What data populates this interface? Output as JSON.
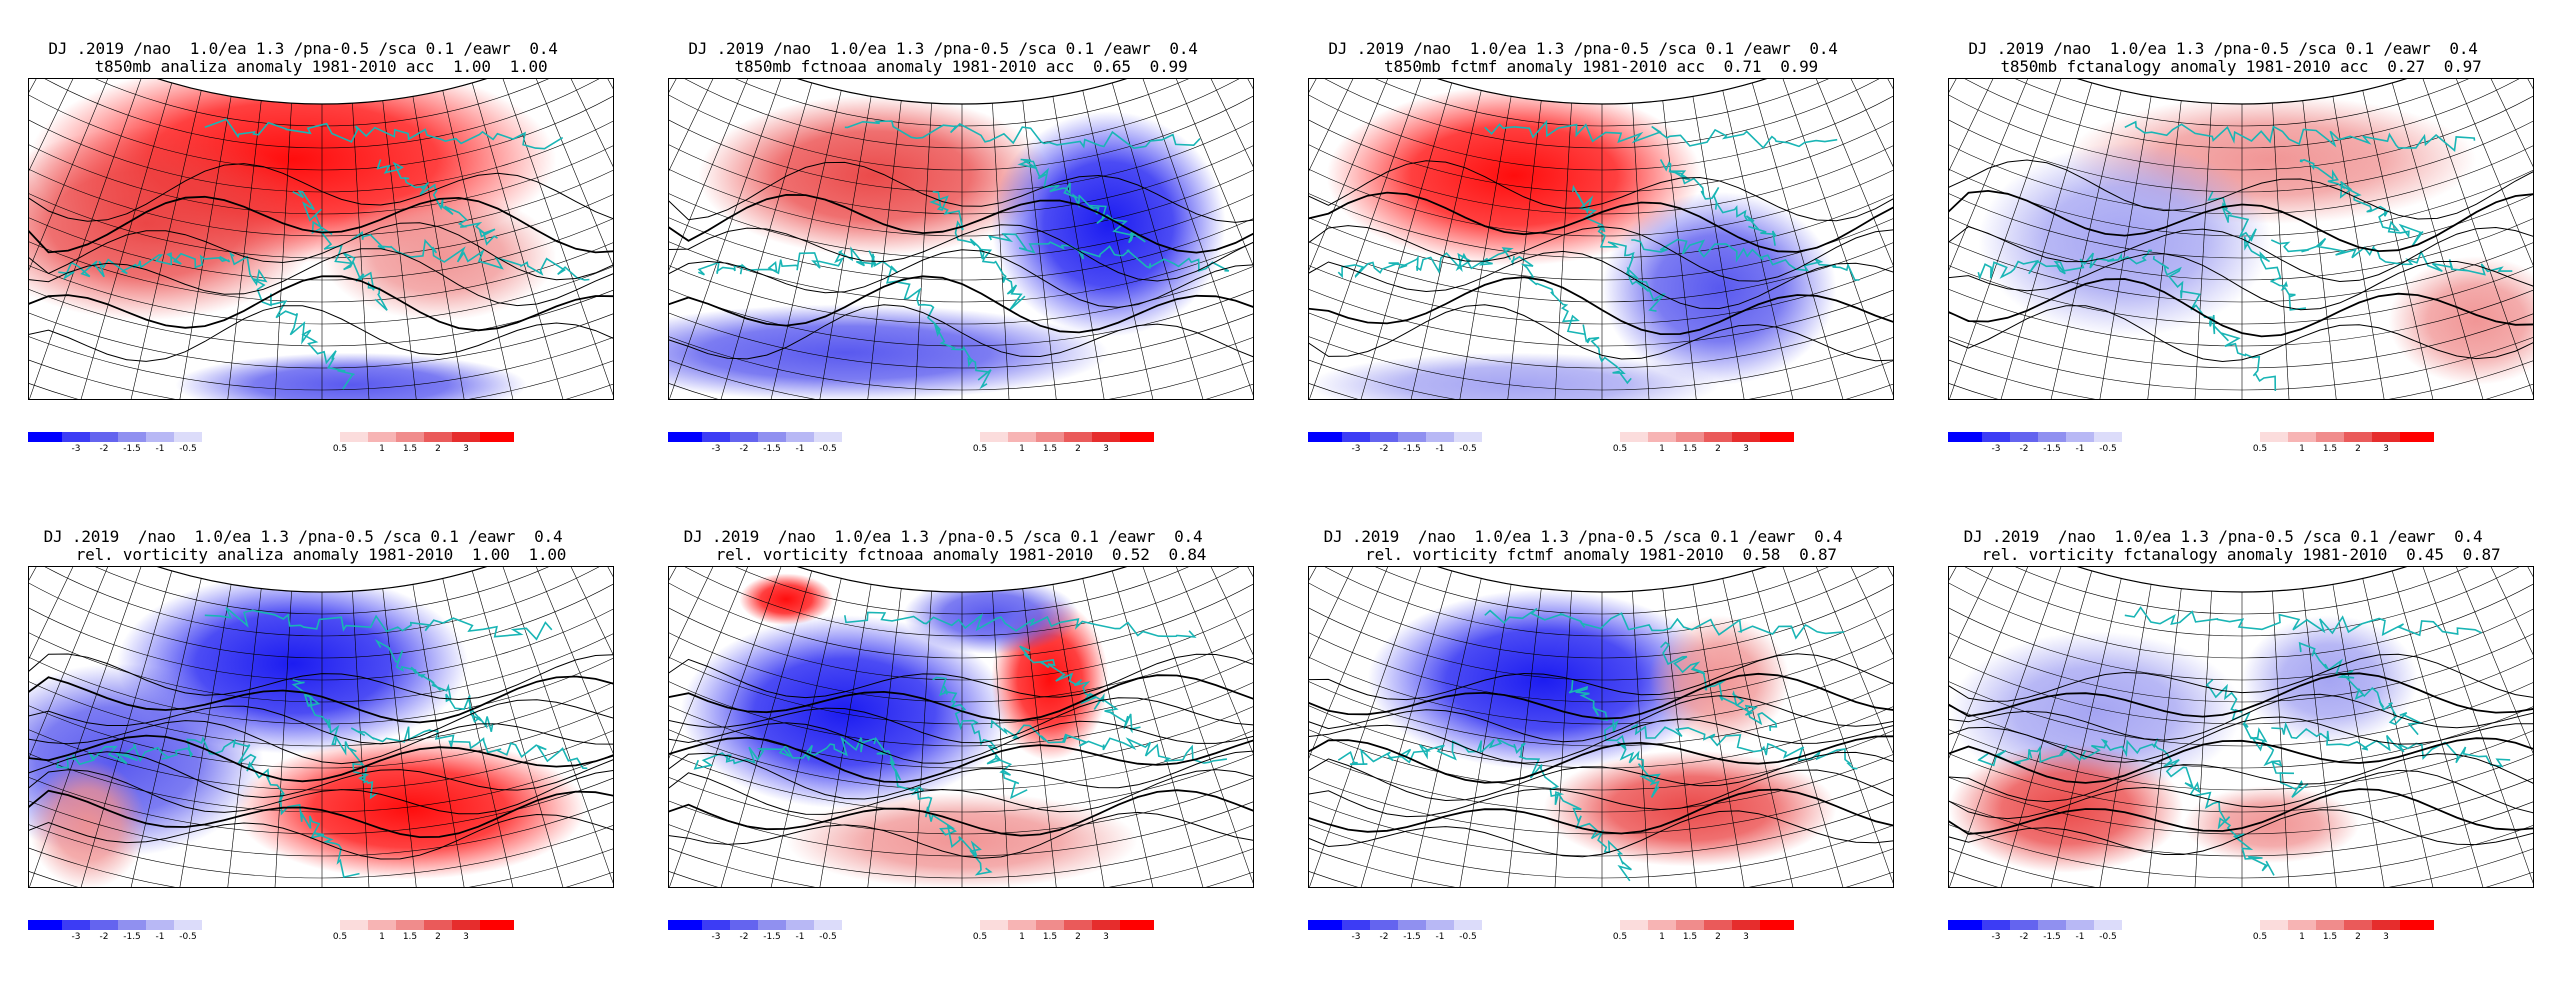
{
  "panels": [
    {
      "line1": "DJ .2019 /nao  1.0/ea 1.3 /pna-0.5 /sca 0.1 /eawr  0.4",
      "line2": "t850mb analiza anomaly 1981-2010 acc  1.00  1.00",
      "field": "t850",
      "scenario": "a"
    },
    {
      "line1": "DJ .2019 /nao  1.0/ea 1.3 /pna-0.5 /sca 0.1 /eawr  0.4",
      "line2": "t850mb fctnoaa anomaly 1981-2010 acc  0.65  0.99",
      "field": "t850",
      "scenario": "b"
    },
    {
      "line1": "DJ .2019 /nao  1.0/ea 1.3 /pna-0.5 /sca 0.1 /eawr  0.4",
      "line2": "t850mb fctmf anomaly 1981-2010 acc  0.71  0.99",
      "field": "t850",
      "scenario": "c"
    },
    {
      "line1": "DJ .2019 /nao  1.0/ea 1.3 /pna-0.5 /sca 0.1 /eawr  0.4",
      "line2": "t850mb fctanalogy anomaly 1981-2010 acc  0.27  0.97",
      "field": "t850",
      "scenario": "d"
    },
    {
      "line1": "DJ .2019  /nao  1.0/ea 1.3 /pna-0.5 /sca 0.1 /eawr  0.4",
      "line2": "rel. vorticity analiza anomaly 1981-2010  1.00  1.00",
      "field": "vort",
      "scenario": "e"
    },
    {
      "line1": "DJ .2019  /nao  1.0/ea 1.3 /pna-0.5 /sca 0.1 /eawr  0.4",
      "line2": "rel. vorticity fctnoaa anomaly 1981-2010  0.52  0.84",
      "field": "vort",
      "scenario": "f"
    },
    {
      "line1": "DJ .2019  /nao  1.0/ea 1.3 /pna-0.5 /sca 0.1 /eawr  0.4",
      "line2": "rel. vorticity fctmf anomaly 1981-2010  0.58  0.87",
      "field": "vort",
      "scenario": "g"
    },
    {
      "line1": "DJ .2019  /nao  1.0/ea 1.3 /pna-0.5 /sca 0.1 /eawr  0.4",
      "line2": "rel. vorticity fctanalogy anomaly 1981-2010  0.45  0.87",
      "field": "vort",
      "scenario": "h"
    }
  ],
  "colorbar": {
    "labels": [
      "-3",
      "-2",
      "-1.5",
      "-1",
      "-0.5",
      "0.5",
      "1",
      "1.5",
      "2",
      "3"
    ],
    "colors": [
      "#0000ff",
      "#3c3cf5",
      "#6464ef",
      "#9090f0",
      "#b8b8f5",
      "#dcdcfa",
      "#fbdcdc",
      "#f7b4b4",
      "#f08c8c",
      "#ea5a5a",
      "#e62d2d",
      "#ff0000"
    ]
  },
  "map_colors": {
    "coast": "#19b5b5",
    "contour": "#000000",
    "grid": "#000000"
  }
}
